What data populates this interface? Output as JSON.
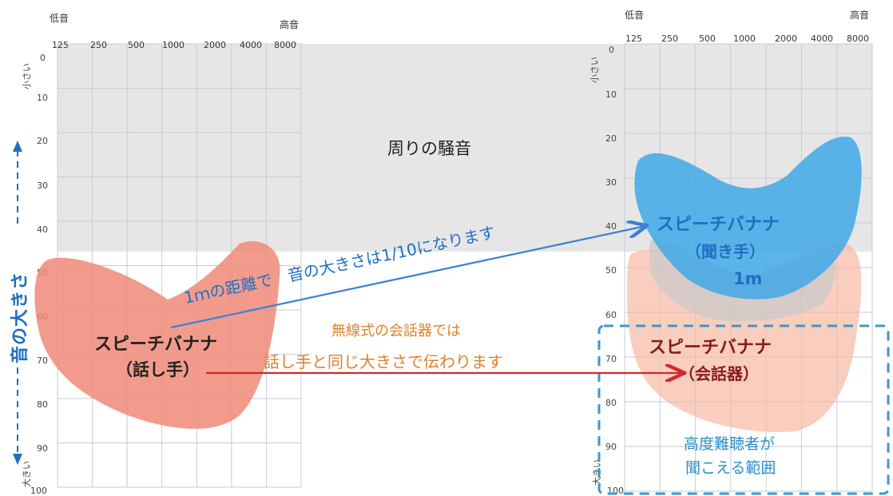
{
  "left_panel": {
    "low_label": "低音",
    "high_label": "高音",
    "frequencies": [
      "125",
      "250",
      "500",
      "1000",
      "2000",
      "4000",
      "8000"
    ],
    "db_values": [
      "0",
      "10",
      "20",
      "30",
      "40",
      "50",
      "60",
      "70",
      "80",
      "90",
      "100"
    ],
    "quiet_label": "小さい",
    "loud_label": "大きい",
    "banana_title": "スピーチバナナ",
    "banana_subtitle": "（話し手）"
  },
  "right_panel": {
    "low_label": "低音",
    "high_label": "高音",
    "frequencies": [
      "125",
      "250",
      "500",
      "1000",
      "2000",
      "4000",
      "8000"
    ],
    "db_values": [
      "0",
      "10",
      "20",
      "30",
      "40",
      "50",
      "60",
      "70",
      "80",
      "90",
      "100"
    ],
    "quiet_label": "小さい",
    "loud_label": "大きい",
    "listener_title": "スピーチバナナ",
    "listener_subtitle": "（聞き手）",
    "listener_distance": "1m",
    "device_title": "スピーチバナナ",
    "device_subtitle": "（会話器）",
    "range_line1": "高度難聴者が",
    "range_line2": "聞こえる範囲"
  },
  "volume_axis_label": "音の大きさ",
  "noise_label": "周りの騒音",
  "distance_note": "1ｍの距離で　音の大きさは1/10になります",
  "device_note_line1": "無線式の会話器では",
  "device_note_line2": "話し手と同じ大きさで伝わります",
  "colors": {
    "blue_text": "#1f6fc2",
    "orange_text": "#d9822b",
    "dark_red": "#8b1a1a",
    "red_arrow": "#d0282c",
    "blue_arrow": "#3d7fd6",
    "salmon": "#f08a78",
    "sky": "#3fa8e6",
    "noise_gray": "#e4e4e4",
    "dashed_box": "#3e97c8"
  }
}
